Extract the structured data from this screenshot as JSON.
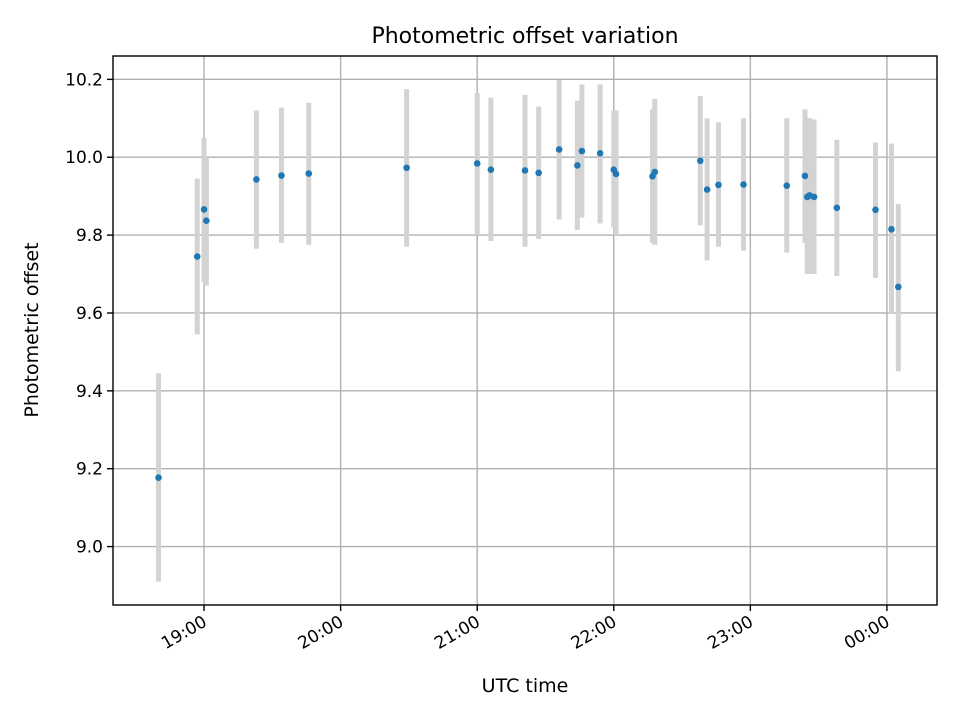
{
  "chart_data": {
    "type": "scatter",
    "title": "Photometric offset variation",
    "xlabel": "UTC time",
    "ylabel": "Photometric offset",
    "xlim": [
      "18:20",
      "00:22"
    ],
    "ylim": [
      8.85,
      10.26
    ],
    "x_ticks": [
      "19:00",
      "20:00",
      "21:00",
      "22:00",
      "23:00",
      "00:00"
    ],
    "y_ticks": [
      9.0,
      9.2,
      9.4,
      9.6,
      9.8,
      10.0,
      10.2
    ],
    "grid": true,
    "colors": {
      "points": "#1f77b4",
      "error_bars": "#d3d3d3",
      "grid": "#b0b0b0"
    },
    "points": [
      {
        "time": "18:40",
        "y": 9.177,
        "y_low": 8.91,
        "y_high": 9.445
      },
      {
        "time": "18:57",
        "y": 9.745,
        "y_low": 9.545,
        "y_high": 9.945
      },
      {
        "time": "19:00",
        "y": 9.866,
        "y_low": 9.68,
        "y_high": 10.05
      },
      {
        "time": "19:01",
        "y": 9.837,
        "y_low": 9.67,
        "y_high": 10.0
      },
      {
        "time": "19:23",
        "y": 9.943,
        "y_low": 9.765,
        "y_high": 10.12
      },
      {
        "time": "19:34",
        "y": 9.953,
        "y_low": 9.78,
        "y_high": 10.127
      },
      {
        "time": "19:46",
        "y": 9.958,
        "y_low": 9.775,
        "y_high": 10.14
      },
      {
        "time": "20:29",
        "y": 9.973,
        "y_low": 9.77,
        "y_high": 10.175
      },
      {
        "time": "21:00",
        "y": 9.984,
        "y_low": 9.8,
        "y_high": 10.165
      },
      {
        "time": "21:06",
        "y": 9.968,
        "y_low": 9.785,
        "y_high": 10.153
      },
      {
        "time": "21:21",
        "y": 9.966,
        "y_low": 9.77,
        "y_high": 10.16
      },
      {
        "time": "21:27",
        "y": 9.96,
        "y_low": 9.79,
        "y_high": 10.13
      },
      {
        "time": "21:36",
        "y": 10.02,
        "y_low": 9.84,
        "y_high": 10.198
      },
      {
        "time": "21:44",
        "y": 9.979,
        "y_low": 9.813,
        "y_high": 10.145
      },
      {
        "time": "21:46",
        "y": 10.016,
        "y_low": 9.845,
        "y_high": 10.187
      },
      {
        "time": "21:54",
        "y": 10.01,
        "y_low": 9.83,
        "y_high": 10.187
      },
      {
        "time": "22:00",
        "y": 9.968,
        "y_low": 9.82,
        "y_high": 10.12
      },
      {
        "time": "22:01",
        "y": 9.957,
        "y_low": 9.8,
        "y_high": 10.12
      },
      {
        "time": "22:17",
        "y": 9.951,
        "y_low": 9.78,
        "y_high": 10.123
      },
      {
        "time": "22:18",
        "y": 9.962,
        "y_low": 9.775,
        "y_high": 10.15
      },
      {
        "time": "22:38",
        "y": 9.991,
        "y_low": 9.825,
        "y_high": 10.157
      },
      {
        "time": "22:41",
        "y": 9.917,
        "y_low": 9.735,
        "y_high": 10.1
      },
      {
        "time": "22:46",
        "y": 9.929,
        "y_low": 9.77,
        "y_high": 10.09
      },
      {
        "time": "22:57",
        "y": 9.93,
        "y_low": 9.76,
        "y_high": 10.1
      },
      {
        "time": "23:16",
        "y": 9.927,
        "y_low": 9.755,
        "y_high": 10.1
      },
      {
        "time": "23:24",
        "y": 9.952,
        "y_low": 9.78,
        "y_high": 10.123
      },
      {
        "time": "23:25",
        "y": 9.898,
        "y_low": 9.7,
        "y_high": 10.1
      },
      {
        "time": "23:26",
        "y": 9.902,
        "y_low": 9.7,
        "y_high": 10.1
      },
      {
        "time": "23:28",
        "y": 9.898,
        "y_low": 9.7,
        "y_high": 10.097
      },
      {
        "time": "23:38",
        "y": 9.87,
        "y_low": 9.695,
        "y_high": 10.045
      },
      {
        "time": "23:55",
        "y": 9.865,
        "y_low": 9.69,
        "y_high": 10.038
      },
      {
        "time": "00:02",
        "y": 9.815,
        "y_low": 9.6,
        "y_high": 10.035
      },
      {
        "time": "00:05",
        "y": 9.667,
        "y_low": 9.45,
        "y_high": 9.88
      }
    ]
  }
}
